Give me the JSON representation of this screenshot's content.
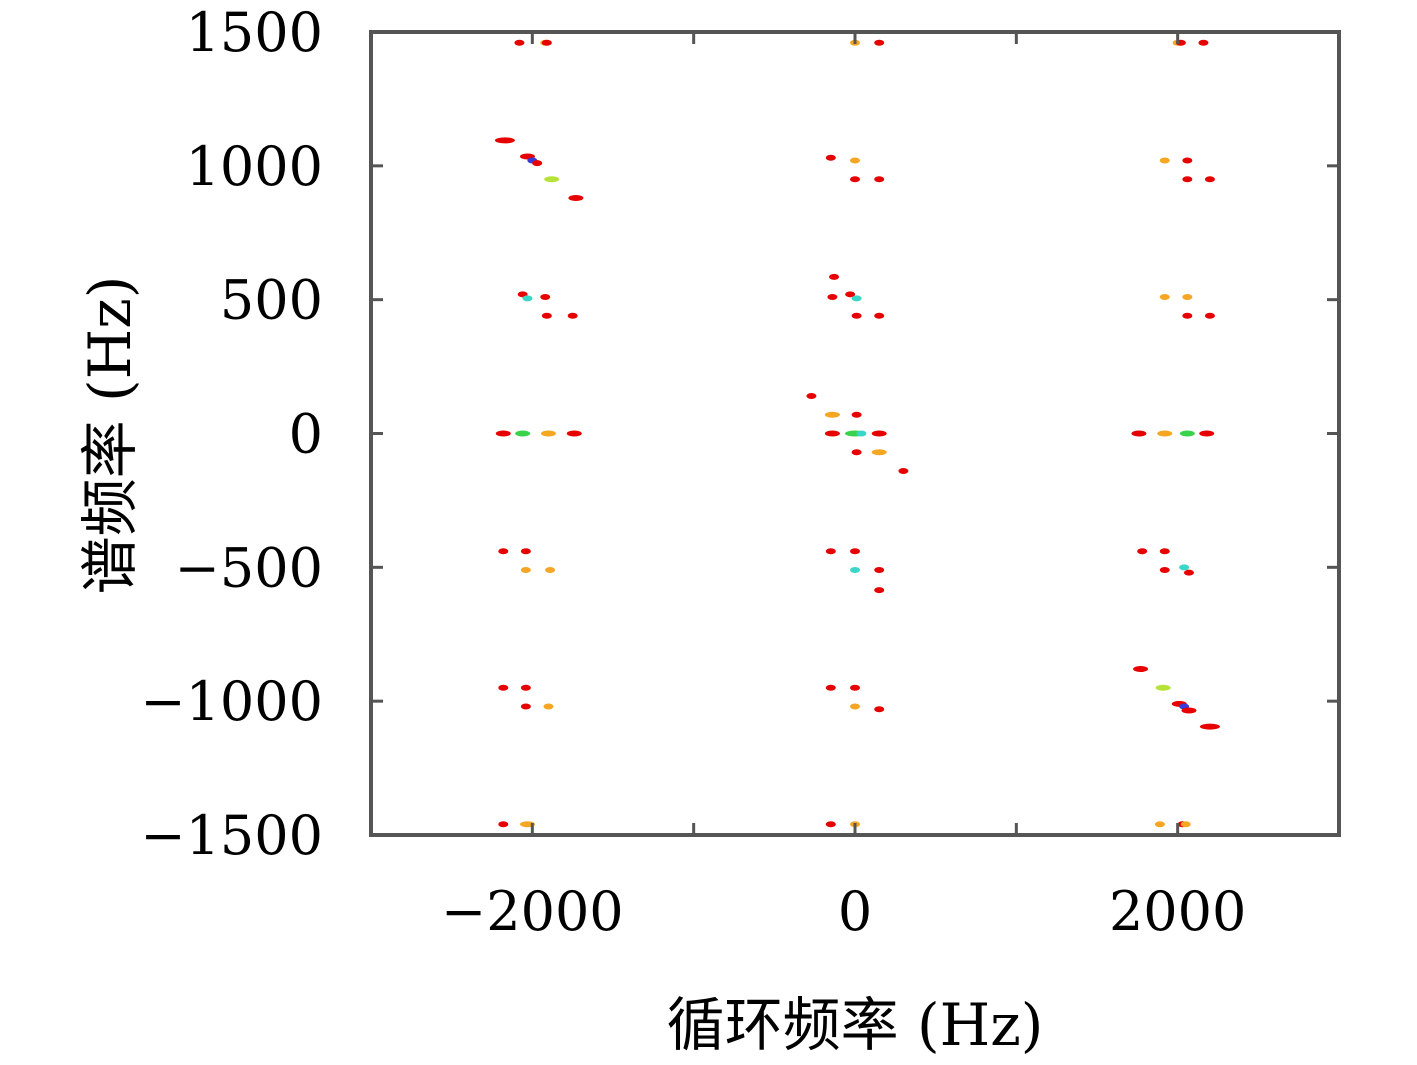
{
  "chart_data": {
    "type": "scatter",
    "title": "",
    "xlabel": "循环频率 (Hz)",
    "ylabel": "谱频率 (Hz)",
    "xlim": [
      -3000,
      3000
    ],
    "ylim": [
      -1500,
      1500
    ],
    "xticks": [
      -2000,
      -1000,
      0,
      1000,
      2000
    ],
    "xtick_labels": [
      "−2000",
      "",
      "0",
      "",
      "2000"
    ],
    "yticks": [
      -1500,
      -1000,
      -500,
      0,
      500,
      1000,
      1500
    ],
    "ytick_labels": [
      "−1500",
      "−1000",
      "−500",
      "0",
      "500",
      "1000",
      "1500"
    ],
    "grid": false,
    "legend": "none",
    "colors": {
      "red": "#e60000",
      "orange": "#f5a623",
      "yellow_green": "#b6e23a",
      "green": "#38d24b",
      "cyan": "#3ad6c8",
      "blue": "#3a3ad6",
      "axis": "#555555"
    },
    "points": [
      {
        "x": -2080,
        "y": 1460,
        "c": "red"
      },
      {
        "x": -1920,
        "y": 1460,
        "c": "orange"
      },
      {
        "x": -1910,
        "y": 1460,
        "c": "red"
      },
      {
        "x": 0,
        "y": 1460,
        "c": "orange"
      },
      {
        "x": 150,
        "y": 1460,
        "c": "red"
      },
      {
        "x": 2000,
        "y": 1460,
        "c": "orange"
      },
      {
        "x": 2020,
        "y": 1460,
        "c": "red"
      },
      {
        "x": 2160,
        "y": 1460,
        "c": "red"
      },
      {
        "x": -2170,
        "y": 1095,
        "c": "red",
        "w": 3
      },
      {
        "x": -2030,
        "y": 1035,
        "c": "red",
        "w": 2
      },
      {
        "x": -2000,
        "y": 1020,
        "c": "blue"
      },
      {
        "x": -1970,
        "y": 1010,
        "c": "red"
      },
      {
        "x": -1880,
        "y": 950,
        "c": "yellow_green",
        "w": 2
      },
      {
        "x": -1730,
        "y": 880,
        "c": "red",
        "w": 2
      },
      {
        "x": -150,
        "y": 1030,
        "c": "red"
      },
      {
        "x": 0,
        "y": 1020,
        "c": "orange"
      },
      {
        "x": 0,
        "y": 950,
        "c": "red"
      },
      {
        "x": 150,
        "y": 950,
        "c": "red"
      },
      {
        "x": 1920,
        "y": 1020,
        "c": "orange"
      },
      {
        "x": 2060,
        "y": 1020,
        "c": "red"
      },
      {
        "x": 2060,
        "y": 950,
        "c": "red"
      },
      {
        "x": 2200,
        "y": 950,
        "c": "red"
      },
      {
        "x": -2060,
        "y": 520,
        "c": "red"
      },
      {
        "x": -2030,
        "y": 505,
        "c": "cyan"
      },
      {
        "x": -1920,
        "y": 510,
        "c": "red"
      },
      {
        "x": -1910,
        "y": 440,
        "c": "red"
      },
      {
        "x": -1750,
        "y": 440,
        "c": "red"
      },
      {
        "x": -130,
        "y": 585,
        "c": "red"
      },
      {
        "x": -140,
        "y": 510,
        "c": "red"
      },
      {
        "x": -30,
        "y": 520,
        "c": "red"
      },
      {
        "x": 10,
        "y": 505,
        "c": "cyan"
      },
      {
        "x": 10,
        "y": 440,
        "c": "red"
      },
      {
        "x": 150,
        "y": 440,
        "c": "red"
      },
      {
        "x": 1920,
        "y": 510,
        "c": "orange"
      },
      {
        "x": 2060,
        "y": 510,
        "c": "orange"
      },
      {
        "x": 2060,
        "y": 440,
        "c": "red"
      },
      {
        "x": 2200,
        "y": 440,
        "c": "red"
      },
      {
        "x": -2180,
        "y": 0,
        "c": "red",
        "w": 2
      },
      {
        "x": -2060,
        "y": 0,
        "c": "green",
        "w": 2
      },
      {
        "x": -1900,
        "y": 0,
        "c": "orange",
        "w": 2
      },
      {
        "x": -1740,
        "y": 0,
        "c": "red",
        "w": 2
      },
      {
        "x": -270,
        "y": 140,
        "c": "red"
      },
      {
        "x": -140,
        "y": 70,
        "c": "orange",
        "w": 2
      },
      {
        "x": 10,
        "y": 70,
        "c": "red"
      },
      {
        "x": -140,
        "y": 0,
        "c": "red",
        "w": 2
      },
      {
        "x": 0,
        "y": 0,
        "c": "green",
        "w": 3
      },
      {
        "x": 40,
        "y": 0,
        "c": "cyan"
      },
      {
        "x": 150,
        "y": 0,
        "c": "red",
        "w": 2
      },
      {
        "x": 10,
        "y": -70,
        "c": "red"
      },
      {
        "x": 150,
        "y": -70,
        "c": "orange",
        "w": 2
      },
      {
        "x": 300,
        "y": -140,
        "c": "red"
      },
      {
        "x": 1760,
        "y": 0,
        "c": "red",
        "w": 2
      },
      {
        "x": 1920,
        "y": 0,
        "c": "orange",
        "w": 2
      },
      {
        "x": 2060,
        "y": 0,
        "c": "green",
        "w": 2
      },
      {
        "x": 2180,
        "y": 0,
        "c": "red",
        "w": 2
      },
      {
        "x": -2180,
        "y": -440,
        "c": "red"
      },
      {
        "x": -2040,
        "y": -440,
        "c": "red"
      },
      {
        "x": -2040,
        "y": -510,
        "c": "orange"
      },
      {
        "x": -1890,
        "y": -510,
        "c": "orange"
      },
      {
        "x": -150,
        "y": -440,
        "c": "red"
      },
      {
        "x": 0,
        "y": -440,
        "c": "red"
      },
      {
        "x": 0,
        "y": -510,
        "c": "cyan"
      },
      {
        "x": 150,
        "y": -510,
        "c": "red"
      },
      {
        "x": 150,
        "y": -585,
        "c": "red"
      },
      {
        "x": 1780,
        "y": -440,
        "c": "red"
      },
      {
        "x": 1920,
        "y": -440,
        "c": "red"
      },
      {
        "x": 1920,
        "y": -510,
        "c": "red"
      },
      {
        "x": 2040,
        "y": -500,
        "c": "cyan"
      },
      {
        "x": 2070,
        "y": -520,
        "c": "red"
      },
      {
        "x": -2180,
        "y": -950,
        "c": "red"
      },
      {
        "x": -2040,
        "y": -950,
        "c": "red"
      },
      {
        "x": -2040,
        "y": -1020,
        "c": "red"
      },
      {
        "x": -1900,
        "y": -1020,
        "c": "orange"
      },
      {
        "x": -150,
        "y": -950,
        "c": "red"
      },
      {
        "x": 0,
        "y": -950,
        "c": "red"
      },
      {
        "x": 0,
        "y": -1020,
        "c": "orange"
      },
      {
        "x": 150,
        "y": -1030,
        "c": "red"
      },
      {
        "x": 1770,
        "y": -880,
        "c": "red",
        "w": 2
      },
      {
        "x": 1910,
        "y": -950,
        "c": "yellow_green",
        "w": 2
      },
      {
        "x": 2010,
        "y": -1010,
        "c": "red",
        "w": 2
      },
      {
        "x": 2040,
        "y": -1020,
        "c": "blue"
      },
      {
        "x": 2070,
        "y": -1035,
        "c": "red",
        "w": 2
      },
      {
        "x": 2200,
        "y": -1095,
        "c": "red",
        "w": 3
      },
      {
        "x": -2180,
        "y": -1460,
        "c": "red"
      },
      {
        "x": -2030,
        "y": -1460,
        "c": "orange",
        "w": 2
      },
      {
        "x": -150,
        "y": -1460,
        "c": "red"
      },
      {
        "x": 0,
        "y": -1460,
        "c": "orange"
      },
      {
        "x": 1890,
        "y": -1460,
        "c": "orange"
      },
      {
        "x": 2030,
        "y": -1460,
        "c": "red"
      },
      {
        "x": 2050,
        "y": -1460,
        "c": "orange"
      }
    ]
  }
}
